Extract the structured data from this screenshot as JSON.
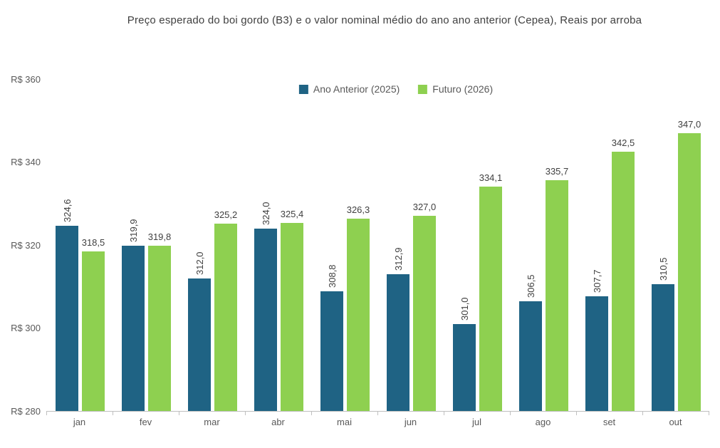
{
  "title": "Preço esperado do boi gordo (B3) e o valor nominal médio do ano ano anterior (Cepea), Reais por arroba",
  "chart_data": {
    "type": "bar",
    "title": "Preço esperado do boi gordo (B3) e o valor nominal médio do ano ano anterior (Cepea), Reais por arroba",
    "categories": [
      "jan",
      "fev",
      "mar",
      "abr",
      "mai",
      "jun",
      "jul",
      "ago",
      "set",
      "out"
    ],
    "series": [
      {
        "name": "Ano Anterior (2025)",
        "color": "#1F6384",
        "values": [
          324.6,
          319.9,
          312.0,
          324.0,
          308.8,
          312.9,
          301.0,
          306.5,
          307.7,
          310.5
        ],
        "label_orientation": "vertical"
      },
      {
        "name": "Futuro (2026)",
        "color": "#8ED050",
        "values": [
          318.5,
          319.8,
          325.2,
          325.4,
          326.3,
          327.0,
          334.1,
          335.7,
          342.5,
          347.0
        ],
        "label_orientation": "horizontal"
      }
    ],
    "y_axis": {
      "tick_labels": [
        "R$ 360",
        "R$ 340",
        "R$ 320",
        "R$ 300",
        "R$ 280"
      ],
      "tick_values": [
        360,
        340,
        320,
        300,
        280
      ],
      "min": 280,
      "max": 360,
      "currency_prefix": "R$"
    },
    "decimal_separator": ",",
    "grid": false,
    "legend_position": "top-center",
    "axis_color": "#BFBFBF",
    "label_color": "#404040",
    "tick_text_color": "#595959"
  }
}
